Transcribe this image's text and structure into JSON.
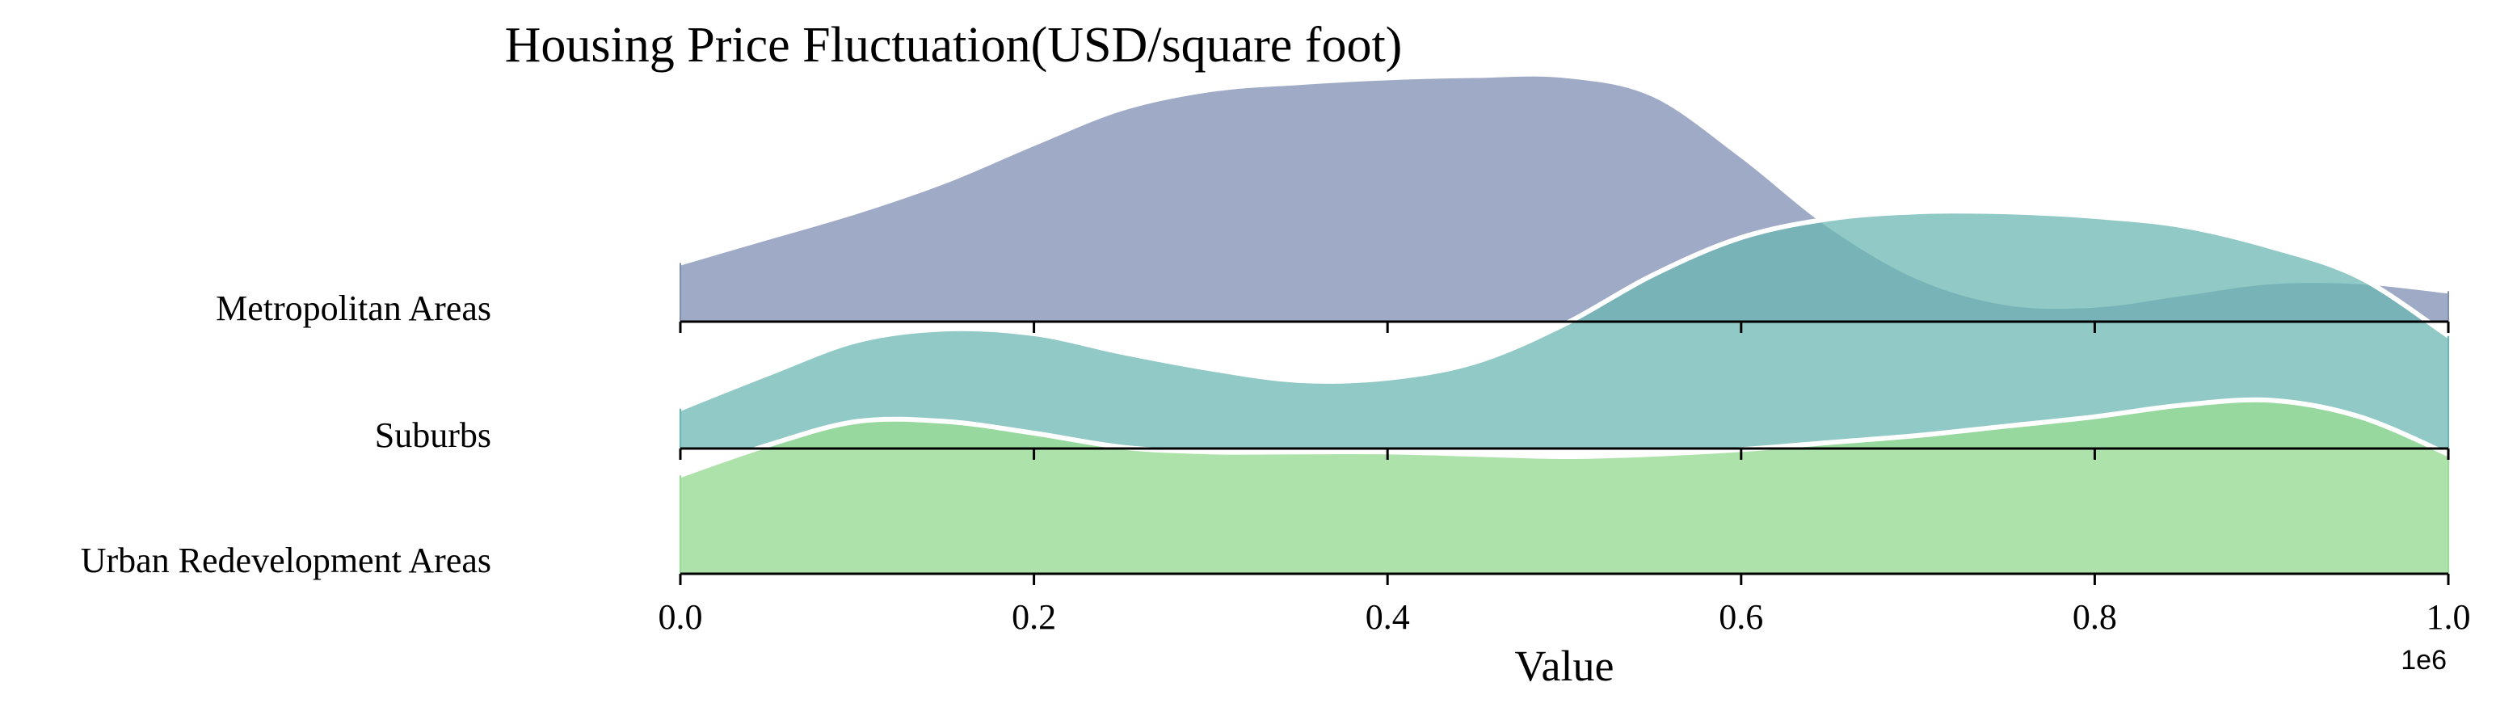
{
  "chart_data": {
    "type": "area",
    "title": "Housing Price Fluctuation(USD/square foot)",
    "xlabel": "Value",
    "x_offset_label": "1e6",
    "xlim": [
      0,
      1
    ],
    "x_ticks": [
      "0.0",
      "0.2",
      "0.4",
      "0.6",
      "0.8",
      "1.0"
    ],
    "ylabel": "",
    "grid": false,
    "legend": "none",
    "series": [
      {
        "name": "Metropolitan Areas",
        "color": "#7f8db4",
        "opacity": 0.75,
        "x": [
          0,
          0.05,
          0.1,
          0.15,
          0.2,
          0.25,
          0.3,
          0.35,
          0.4,
          0.45,
          0.5,
          0.55,
          0.6,
          0.65,
          0.7,
          0.75,
          0.8,
          0.85,
          0.9,
          0.95,
          1.0
        ],
        "y": [
          0.25,
          0.36,
          0.47,
          0.6,
          0.76,
          0.91,
          0.99,
          1.02,
          1.04,
          1.05,
          1.05,
          0.97,
          0.71,
          0.41,
          0.19,
          0.08,
          0.07,
          0.12,
          0.17,
          0.17,
          0.13
        ]
      },
      {
        "name": "Suburbs",
        "color": "#6bb7b1",
        "opacity": 0.75,
        "x": [
          0,
          0.05,
          0.1,
          0.15,
          0.2,
          0.25,
          0.3,
          0.35,
          0.4,
          0.45,
          0.5,
          0.55,
          0.6,
          0.65,
          0.7,
          0.75,
          0.8,
          0.85,
          0.9,
          0.95,
          1.0
        ],
        "y": [
          0.17,
          0.32,
          0.46,
          0.51,
          0.49,
          0.41,
          0.34,
          0.29,
          0.3,
          0.37,
          0.53,
          0.74,
          0.9,
          0.98,
          1.01,
          1.01,
          0.99,
          0.95,
          0.86,
          0.73,
          0.48
        ]
      },
      {
        "name": "Urban Redevelopment Areas",
        "color": "#98dc95",
        "opacity": 0.8,
        "x": [
          0,
          0.05,
          0.1,
          0.15,
          0.2,
          0.25,
          0.3,
          0.35,
          0.4,
          0.45,
          0.5,
          0.55,
          0.6,
          0.65,
          0.7,
          0.75,
          0.8,
          0.85,
          0.9,
          0.95,
          1.0
        ],
        "y": [
          0.42,
          0.55,
          0.65,
          0.65,
          0.6,
          0.54,
          0.52,
          0.52,
          0.52,
          0.51,
          0.5,
          0.51,
          0.53,
          0.56,
          0.59,
          0.63,
          0.67,
          0.72,
          0.74,
          0.67,
          0.51
        ]
      }
    ]
  }
}
